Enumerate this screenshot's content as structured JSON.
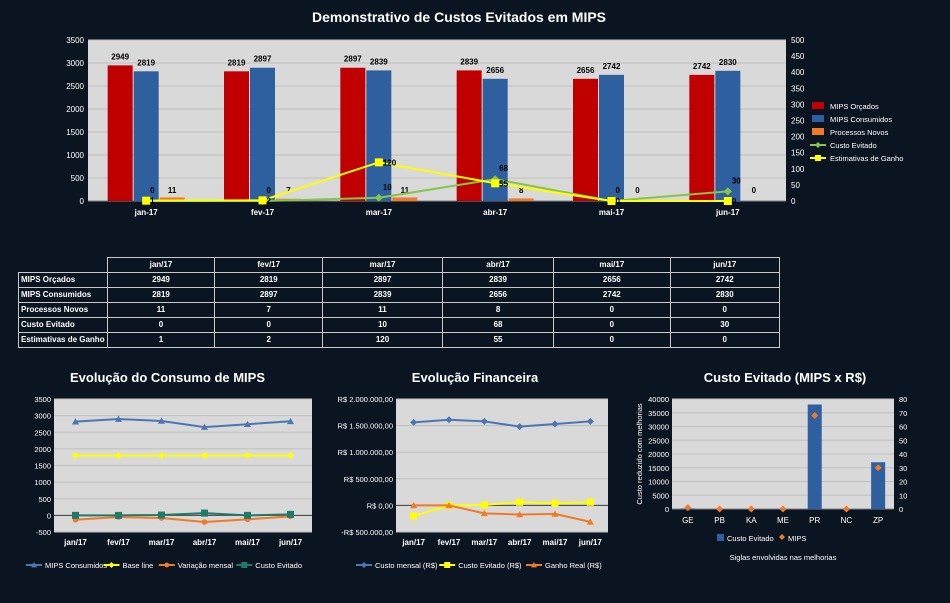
{
  "chart_data": [
    {
      "type": "bar",
      "title": "Demonstrativo de Custos Evitados em MIPS",
      "categories": [
        "jan-17",
        "fev-17",
        "mar-17",
        "abr-17",
        "mai-17",
        "jun-17"
      ],
      "series": [
        {
          "name": "MIPS Orçados",
          "type": "bar",
          "axis": "left",
          "color": "#c00000",
          "values": [
            2949,
            2819,
            2897,
            2839,
            2656,
            2742
          ],
          "labels": [
            "2949",
            "2819",
            "2897",
            "2839",
            "2656",
            "2742"
          ]
        },
        {
          "name": "MIPS Consumidos",
          "type": "bar",
          "axis": "left",
          "color": "#2e5f9e",
          "values": [
            2819,
            2897,
            2839,
            2656,
            2742,
            2830
          ],
          "labels": [
            "2819",
            "2897",
            "2839",
            "2656",
            "2742",
            "2830"
          ]
        },
        {
          "name": "Processos Novos",
          "type": "bar",
          "axis": "right",
          "color": "#f27a24",
          "values": [
            11,
            7,
            11,
            8,
            0,
            0
          ],
          "labels": [
            "11",
            "7",
            "11",
            "8",
            "0",
            "0"
          ]
        },
        {
          "name": "Custo Evitado",
          "type": "line",
          "axis": "right",
          "color": "#84c54a",
          "values": [
            0,
            0,
            10,
            68,
            0,
            30
          ],
          "labels": [
            "0",
            "0",
            "10",
            "68",
            "0",
            "30"
          ]
        },
        {
          "name": "Estimativas de Ganho",
          "type": "line",
          "axis": "right",
          "color": "#ffff00",
          "values": [
            1,
            2,
            120,
            55,
            0,
            0
          ],
          "labels": [
            "1",
            "2",
            "120",
            "55",
            "0",
            "0"
          ]
        }
      ],
      "ylim": [
        0,
        3500
      ],
      "yticks": [
        "0",
        "500",
        "1000",
        "1500",
        "2000",
        "2500",
        "3000",
        "3500"
      ],
      "y2lim": [
        0,
        500
      ],
      "y2ticks": [
        "0",
        "50",
        "100",
        "150",
        "200",
        "250",
        "300",
        "350",
        "400",
        "450",
        "500"
      ],
      "legend": "right"
    },
    {
      "type": "line",
      "title": "Evolução do Consumo  de MIPS",
      "categories": [
        "jan/17",
        "fev/17",
        "mar/17",
        "abr/17",
        "mai/17",
        "jun/17"
      ],
      "series": [
        {
          "name": "MIPS Consumidos",
          "color": "#4a77b4",
          "marker": "triangle",
          "values": [
            2819,
            2897,
            2839,
            2656,
            2742,
            2830
          ]
        },
        {
          "name": "Base line",
          "color": "#ffff00",
          "marker": "diamond",
          "values": [
            1800,
            1800,
            1800,
            1800,
            1800,
            1800
          ]
        },
        {
          "name": "Variação mensal",
          "color": "#f27a24",
          "marker": "circle",
          "values": [
            -131,
            -50,
            -80,
            -200,
            -120,
            -30
          ]
        },
        {
          "name": "Custo Evitado",
          "color": "#1f7a6a",
          "marker": "square",
          "values": [
            0,
            0,
            10,
            68,
            0,
            30
          ]
        }
      ],
      "ylim": [
        -500,
        3500
      ],
      "yticks": [
        "-500",
        "0",
        "500",
        "1000",
        "1500",
        "2000",
        "2500",
        "3000",
        "3500"
      ],
      "legend": "bottom"
    },
    {
      "type": "line",
      "title": "Evolução Financeira",
      "categories": [
        "jan/17",
        "fev/17",
        "mar/17",
        "abr/17",
        "mai/17",
        "jun/17"
      ],
      "series": [
        {
          "name": "Custo mensal (R$)",
          "color": "#4a77b4",
          "marker": "diamond",
          "values": [
            1560000,
            1610000,
            1580000,
            1480000,
            1530000,
            1580000
          ]
        },
        {
          "name": "Custo Evitado (R$)",
          "color": "#ffff00",
          "marker": "square",
          "values": [
            -200000,
            0,
            10000,
            60000,
            40000,
            60000
          ]
        },
        {
          "name": "Ganho Real (R$)",
          "color": "#f27a24",
          "marker": "triangle",
          "values": [
            0,
            0,
            -150000,
            -170000,
            -160000,
            -310000
          ]
        }
      ],
      "ylim": [
        -500000,
        2000000
      ],
      "yticks": [
        "-R$ 500.000,00",
        "R$ 0,00",
        "R$ 500.000,00",
        "R$ 1.000.000,00",
        "R$ 1.500.000,00",
        "R$ 2.000.000,00"
      ],
      "legend": "bottom"
    },
    {
      "type": "bar",
      "title": "Custo Evitado (MIPS x R$)",
      "categories": [
        "GE",
        "PB",
        "KA",
        "ME",
        "PR",
        "NC",
        "ZP"
      ],
      "series": [
        {
          "name": "Custo Evitado",
          "type": "bar",
          "axis": "left",
          "color": "#2e5f9e",
          "values": [
            200,
            0,
            0,
            0,
            38000,
            0,
            17000
          ]
        },
        {
          "name": "MIPS",
          "type": "scatter",
          "axis": "right",
          "color": "#f27a24",
          "values": [
            1,
            0,
            0,
            0,
            68,
            0,
            30
          ]
        }
      ],
      "ylim": [
        0,
        40000
      ],
      "yticks": [
        "0",
        "5000",
        "10000",
        "15000",
        "20000",
        "25000",
        "30000",
        "35000",
        "40000"
      ],
      "y2lim": [
        0,
        80
      ],
      "y2ticks": [
        "0",
        "10",
        "20",
        "30",
        "40",
        "50",
        "60",
        "70",
        "80"
      ],
      "ylabel": "Custo reduzido com melhorias",
      "xlabel": "Siglas envolvidas nas melhorias",
      "legend": "bottom"
    }
  ],
  "table": {
    "headers": [
      "jan/17",
      "fev/17",
      "mar/17",
      "abr/17",
      "mai/17",
      "jun/17"
    ],
    "rows": [
      {
        "label": "MIPS Orçados",
        "values": [
          "2949",
          "2819",
          "2897",
          "2839",
          "2656",
          "2742"
        ]
      },
      {
        "label": "MIPS Consumidos",
        "values": [
          "2819",
          "2897",
          "2839",
          "2656",
          "2742",
          "2830"
        ]
      },
      {
        "label": "Processos Novos",
        "values": [
          "11",
          "7",
          "11",
          "8",
          "0",
          "0"
        ]
      },
      {
        "label": "Custo Evitado",
        "values": [
          "0",
          "0",
          "10",
          "68",
          "0",
          "30"
        ]
      },
      {
        "label": "Estimativas de Ganho",
        "values": [
          "1",
          "2",
          "120",
          "55",
          "0",
          "0"
        ]
      }
    ]
  }
}
